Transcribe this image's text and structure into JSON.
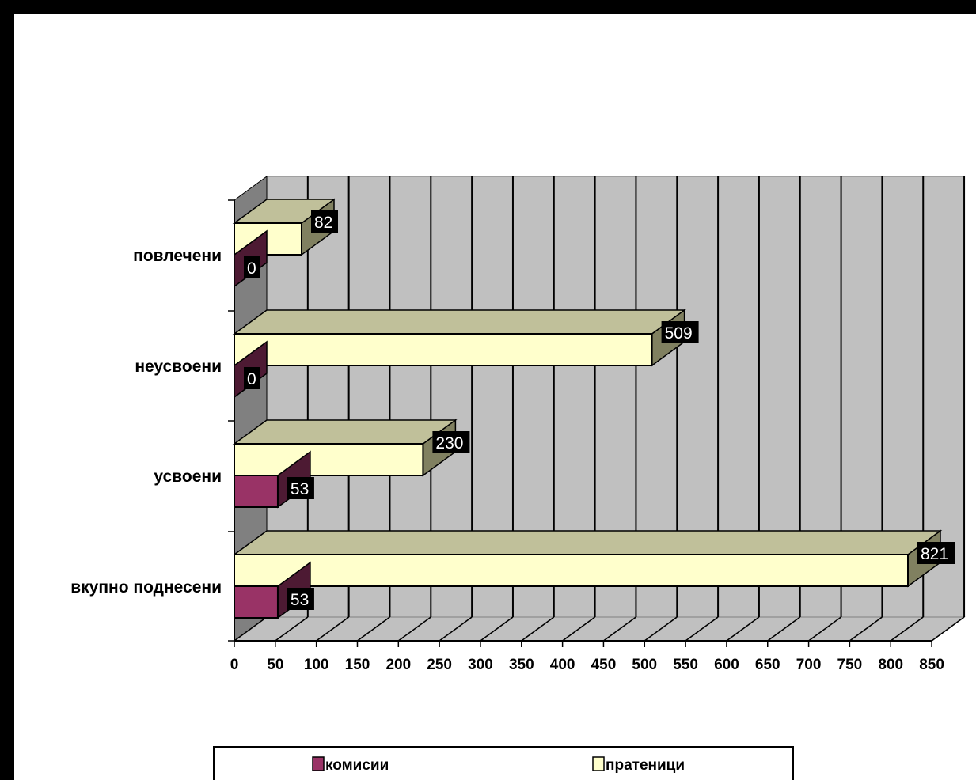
{
  "chart_data": {
    "type": "bar",
    "orientation": "horizontal",
    "three_d": true,
    "title": "",
    "xlabel": "",
    "ylabel": "",
    "categories": [
      "вкупно поднесени",
      "усвоени",
      "неусвоени",
      "повлечени"
    ],
    "series": [
      {
        "name": "комисии",
        "values": [
          53,
          53,
          0,
          0
        ],
        "color": "#993366"
      },
      {
        "name": "пратеници",
        "values": [
          821,
          230,
          509,
          82
        ],
        "color": "#ffffcc"
      }
    ],
    "xlim": [
      0,
      850
    ],
    "xticks": [
      "0",
      "50",
      "100",
      "150",
      "200",
      "250",
      "300",
      "350",
      "400",
      "450",
      "500",
      "550",
      "600",
      "650",
      "700",
      "750",
      "800",
      "850"
    ],
    "grid": true,
    "legend_position": "bottom",
    "colors": {
      "wall": "#c0c0c0",
      "side_wall": "#808080",
      "data_label_bg": "#000000",
      "data_label_fg": "#ffffff"
    }
  }
}
